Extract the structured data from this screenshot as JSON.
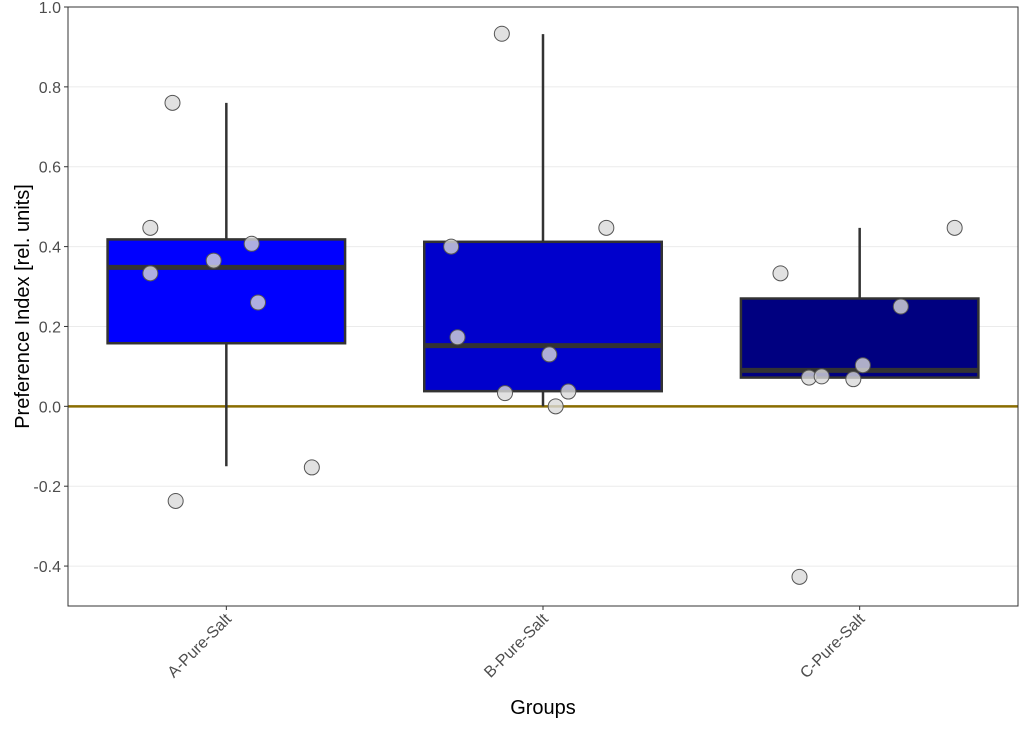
{
  "chart_data": {
    "type": "box",
    "title": "",
    "xlabel": "Groups",
    "ylabel": "Preference Index [rel. units]",
    "ylim": [
      -0.5,
      1.0
    ],
    "yticks": [
      1.0,
      0.8,
      0.6,
      0.4,
      0.2,
      0.0,
      -0.2,
      -0.4
    ],
    "ytick_labels": [
      "1.0",
      "0.8",
      "0.6",
      "0.4",
      "0.2",
      "0.0",
      "-0.2",
      "-0.4"
    ],
    "grid": true,
    "reference_line": {
      "y": 0.0,
      "color": "#8a6d00"
    },
    "categories": [
      "A-Pure-Salt",
      "B-Pure-Salt",
      "C-Pure-Salt"
    ],
    "boxes": [
      {
        "category": "A-Pure-Salt",
        "q1": 0.158,
        "median": 0.348,
        "q3": 0.418,
        "whisker_low": -0.15,
        "whisker_high": 0.76,
        "fill": "#0000ff"
      },
      {
        "category": "B-Pure-Salt",
        "q1": 0.038,
        "median": 0.152,
        "q3": 0.412,
        "whisker_low": 0.0,
        "whisker_high": 0.932,
        "fill": "#0000cc"
      },
      {
        "category": "C-Pure-Salt",
        "q1": 0.072,
        "median": 0.09,
        "q3": 0.27,
        "whisker_low": 0.072,
        "whisker_high": 0.447,
        "fill": "#000080"
      }
    ],
    "points": [
      {
        "category": "A-Pure-Salt",
        "jitter": -0.17,
        "y": 0.76
      },
      {
        "category": "A-Pure-Salt",
        "jitter": -0.24,
        "y": 0.447
      },
      {
        "category": "A-Pure-Salt",
        "jitter": -0.24,
        "y": 0.333
      },
      {
        "category": "A-Pure-Salt",
        "jitter": -0.04,
        "y": 0.365
      },
      {
        "category": "A-Pure-Salt",
        "jitter": 0.08,
        "y": 0.407
      },
      {
        "category": "A-Pure-Salt",
        "jitter": 0.1,
        "y": 0.26
      },
      {
        "category": "A-Pure-Salt",
        "jitter": -0.16,
        "y": -0.237
      },
      {
        "category": "A-Pure-Salt",
        "jitter": 0.27,
        "y": -0.153
      },
      {
        "category": "B-Pure-Salt",
        "jitter": -0.13,
        "y": 0.933
      },
      {
        "category": "B-Pure-Salt",
        "jitter": -0.29,
        "y": 0.4
      },
      {
        "category": "B-Pure-Salt",
        "jitter": -0.27,
        "y": 0.173
      },
      {
        "category": "B-Pure-Salt",
        "jitter": 0.02,
        "y": 0.13
      },
      {
        "category": "B-Pure-Salt",
        "jitter": -0.12,
        "y": 0.033
      },
      {
        "category": "B-Pure-Salt",
        "jitter": 0.08,
        "y": 0.037
      },
      {
        "category": "B-Pure-Salt",
        "jitter": 0.04,
        "y": 0.0
      },
      {
        "category": "B-Pure-Salt",
        "jitter": 0.2,
        "y": 0.447
      },
      {
        "category": "C-Pure-Salt",
        "jitter": -0.25,
        "y": 0.333
      },
      {
        "category": "C-Pure-Salt",
        "jitter": -0.16,
        "y": 0.072
      },
      {
        "category": "C-Pure-Salt",
        "jitter": -0.12,
        "y": 0.075
      },
      {
        "category": "C-Pure-Salt",
        "jitter": -0.02,
        "y": 0.068
      },
      {
        "category": "C-Pure-Salt",
        "jitter": 0.01,
        "y": 0.103
      },
      {
        "category": "C-Pure-Salt",
        "jitter": 0.13,
        "y": 0.25
      },
      {
        "category": "C-Pure-Salt",
        "jitter": 0.3,
        "y": 0.447
      },
      {
        "category": "C-Pure-Salt",
        "jitter": -0.19,
        "y": -0.427
      }
    ],
    "colors": {
      "point_fill": "#d9d9d9",
      "point_stroke": "#555555",
      "box_stroke": "#333333",
      "whisker": "#333333",
      "grid": "#ebebeb",
      "panel_border": "#333333"
    }
  }
}
